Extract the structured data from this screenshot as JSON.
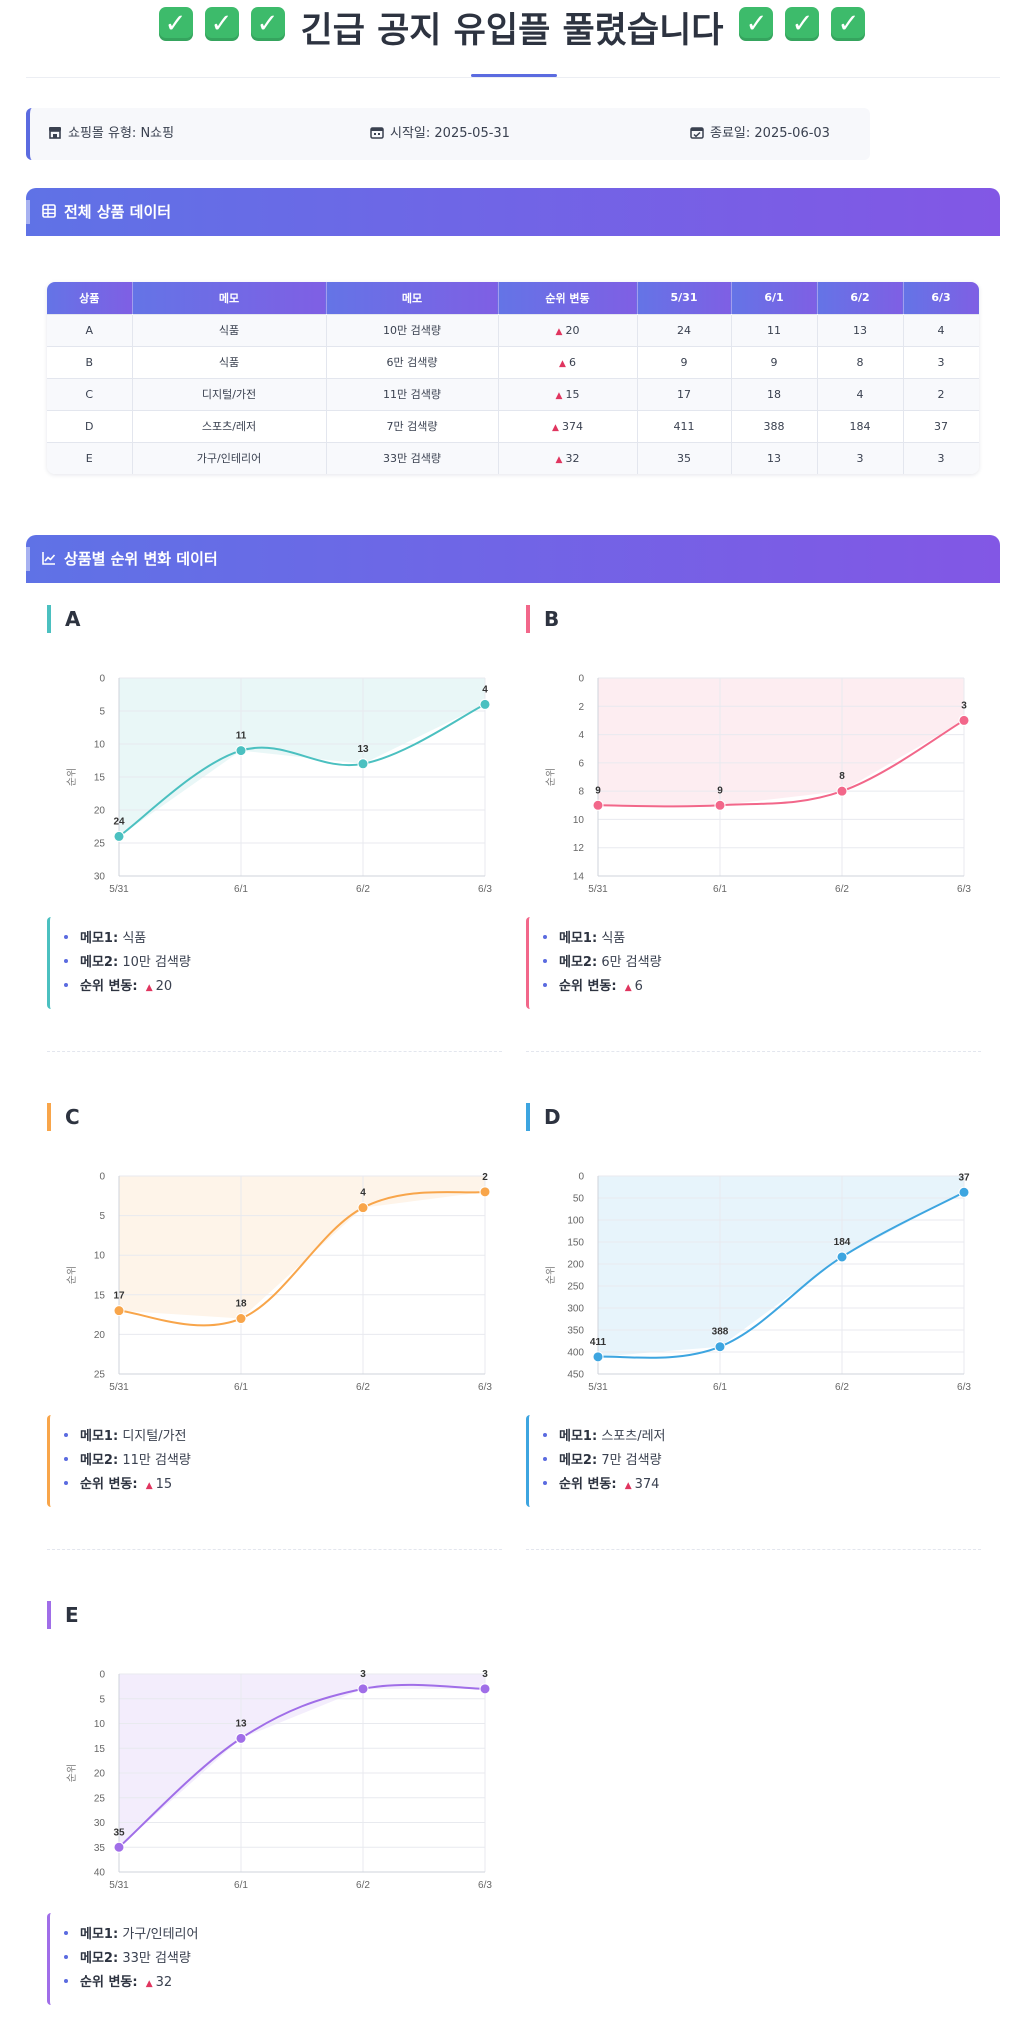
{
  "header": {
    "check_icon": "check-mark-icon",
    "title": "긴급 공지 유입플 풀렸습니다"
  },
  "info": {
    "mall_label": "쇼핑몰 유형:",
    "mall_value": "N쇼핑",
    "start_label": "시작일:",
    "start_value": "2025-05-31",
    "end_label": "종료일:",
    "end_value": "2025-06-03"
  },
  "table_section": {
    "title": "전체 상품 데이터"
  },
  "table": {
    "headers": [
      "상품",
      "메모",
      "메모",
      "순위 변동",
      "5/31",
      "6/1",
      "6/2",
      "6/3"
    ],
    "rows": [
      [
        "A",
        "식품",
        "10만 검색량",
        "20",
        "24",
        "11",
        "13",
        "4"
      ],
      [
        "B",
        "식품",
        "6만 검색량",
        "6",
        "9",
        "9",
        "8",
        "3"
      ],
      [
        "C",
        "디지털/가전",
        "11만 검색량",
        "15",
        "17",
        "18",
        "4",
        "2"
      ],
      [
        "D",
        "스포츠/레저",
        "7만 검색량",
        "374",
        "411",
        "388",
        "184",
        "37"
      ],
      [
        "E",
        "가구/인테리어",
        "33만 검색량",
        "32",
        "35",
        "13",
        "3",
        "3"
      ]
    ]
  },
  "chart_section": {
    "title": "상품별 순위 변화 데이터"
  },
  "memo_labels": {
    "memo1": "메모1:",
    "memo2": "메모2:",
    "change": "순위 변동:"
  },
  "chart_data": [
    {
      "type": "line",
      "title": "A",
      "ylabel": "순위",
      "x": [
        "5/31",
        "6/1",
        "6/2",
        "6/3"
      ],
      "values": [
        24,
        11,
        13,
        4
      ],
      "ylim": [
        0,
        30
      ],
      "yticks": [
        0,
        5,
        10,
        15,
        20,
        25,
        30
      ],
      "y_inverted": true,
      "grid": true,
      "color": "#4bc0c0",
      "fill": "rgba(75,192,192,0.12)",
      "memo1": "식품",
      "memo2": "10만 검색량",
      "change": "20"
    },
    {
      "type": "line",
      "title": "B",
      "ylabel": "순위",
      "x": [
        "5/31",
        "6/1",
        "6/2",
        "6/3"
      ],
      "values": [
        9,
        9,
        8,
        3
      ],
      "ylim": [
        0,
        14
      ],
      "yticks": [
        0,
        2,
        4,
        6,
        8,
        10,
        12,
        14
      ],
      "y_inverted": true,
      "grid": true,
      "color": "#f2678a",
      "fill": "rgba(242,103,138,0.12)",
      "memo1": "식품",
      "memo2": "6만 검색량",
      "change": "6"
    },
    {
      "type": "line",
      "title": "C",
      "ylabel": "순위",
      "x": [
        "5/31",
        "6/1",
        "6/2",
        "6/3"
      ],
      "values": [
        17,
        18,
        4,
        2
      ],
      "ylim": [
        0,
        25
      ],
      "yticks": [
        0,
        5,
        10,
        15,
        20,
        25
      ],
      "y_inverted": true,
      "grid": true,
      "color": "#f8a54a",
      "fill": "rgba(248,165,74,0.12)",
      "memo1": "디지털/가전",
      "memo2": "11만 검색량",
      "change": "15"
    },
    {
      "type": "line",
      "title": "D",
      "ylabel": "순위",
      "x": [
        "5/31",
        "6/1",
        "6/2",
        "6/3"
      ],
      "values": [
        411,
        388,
        184,
        37
      ],
      "ylim": [
        0,
        450
      ],
      "yticks": [
        0,
        50,
        100,
        150,
        200,
        250,
        300,
        350,
        400,
        450
      ],
      "y_inverted": true,
      "grid": true,
      "color": "#3da5e0",
      "fill": "rgba(61,165,224,0.12)",
      "memo1": "스포츠/레저",
      "memo2": "7만 검색량",
      "change": "374"
    },
    {
      "type": "line",
      "title": "E",
      "ylabel": "순위",
      "x": [
        "5/31",
        "6/1",
        "6/2",
        "6/3"
      ],
      "values": [
        35,
        13,
        3,
        3
      ],
      "ylim": [
        0,
        40
      ],
      "yticks": [
        0,
        5,
        10,
        15,
        20,
        25,
        30,
        35,
        40
      ],
      "y_inverted": true,
      "grid": true,
      "color": "#a06ee8",
      "fill": "rgba(160,110,232,0.12)",
      "memo1": "가구/인테리어",
      "memo2": "33만 검색량",
      "change": "32"
    }
  ]
}
